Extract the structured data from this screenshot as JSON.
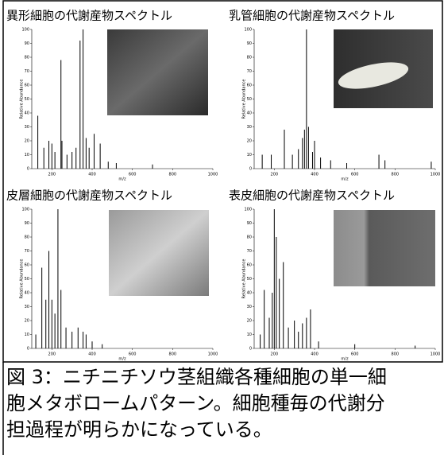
{
  "chart_data": [
    {
      "type": "spectrum",
      "title": "異形細胞の代謝産物スペクトル",
      "xlabel": "m/z",
      "ylabel": "Relative Abundance",
      "x": [
        130,
        160,
        185,
        200,
        215,
        245,
        250,
        275,
        300,
        320,
        340,
        355,
        370,
        385,
        410,
        440,
        480,
        520,
        700
      ],
      "values": [
        38,
        15,
        20,
        18,
        12,
        78,
        20,
        10,
        12,
        15,
        92,
        100,
        22,
        15,
        25,
        18,
        5,
        4,
        3
      ],
      "color": "#000000",
      "xlim": [
        100,
        1000
      ],
      "ylim": [
        0,
        100
      ],
      "xticks": [
        200,
        400,
        600,
        800,
        1000
      ],
      "yticks": [
        0,
        10,
        20,
        30,
        40,
        50,
        60,
        70,
        80,
        90,
        100
      ]
    },
    {
      "type": "spectrum",
      "title": "乳管細胞の代謝産物スペクトル",
      "xlabel": "m/z",
      "ylabel": "Relative Abundance",
      "x": [
        140,
        185,
        250,
        290,
        320,
        340,
        350,
        360,
        370,
        390,
        400,
        430,
        480,
        560,
        720,
        750,
        980
      ],
      "values": [
        10,
        10,
        28,
        10,
        14,
        22,
        28,
        100,
        30,
        12,
        20,
        8,
        6,
        4,
        10,
        6,
        5
      ],
      "color": "#000000",
      "xlim": [
        100,
        1000
      ],
      "ylim": [
        0,
        100
      ],
      "xticks": [
        200,
        400,
        600,
        800,
        1000
      ],
      "yticks": [
        0,
        10,
        20,
        30,
        40,
        50,
        60,
        70,
        80,
        90,
        100
      ]
    },
    {
      "type": "spectrum",
      "title": "皮層細胞の代謝産物スペクトル",
      "xlabel": "m/z",
      "ylabel": "Relative Abundance",
      "x": [
        120,
        150,
        170,
        185,
        200,
        215,
        230,
        245,
        270,
        300,
        330,
        355,
        370,
        400,
        450
      ],
      "values": [
        10,
        58,
        35,
        70,
        35,
        25,
        100,
        42,
        15,
        12,
        15,
        12,
        10,
        5,
        3
      ],
      "color": "#000000",
      "xlim": [
        100,
        1000
      ],
      "ylim": [
        0,
        100
      ],
      "xticks": [
        200,
        400,
        600,
        800,
        1000
      ],
      "yticks": [
        0,
        10,
        20,
        30,
        40,
        50,
        60,
        70,
        80,
        90,
        100
      ]
    },
    {
      "type": "spectrum",
      "title": "表皮細胞の代謝産物スペクトル",
      "xlabel": "m/z",
      "ylabel": "Relative Abundance",
      "x": [
        130,
        150,
        175,
        190,
        200,
        210,
        225,
        245,
        270,
        300,
        320,
        340,
        360,
        380,
        420,
        600,
        900
      ],
      "values": [
        10,
        42,
        22,
        40,
        100,
        80,
        50,
        62,
        15,
        20,
        12,
        18,
        22,
        28,
        5,
        3,
        2
      ],
      "color": "#000000",
      "xlim": [
        100,
        1000
      ],
      "ylim": [
        0,
        100
      ],
      "xticks": [
        200,
        400,
        600,
        800,
        1000
      ],
      "yticks": [
        0,
        10,
        20,
        30,
        40,
        50,
        60,
        70,
        80,
        90,
        100
      ]
    }
  ],
  "caption": [
    "図 3：ニチニチソウ茎組織各種細胞の単一細",
    "胞メタボロームパターン。細胞種毎の代謝分",
    "担過程が明らかになっている。"
  ]
}
